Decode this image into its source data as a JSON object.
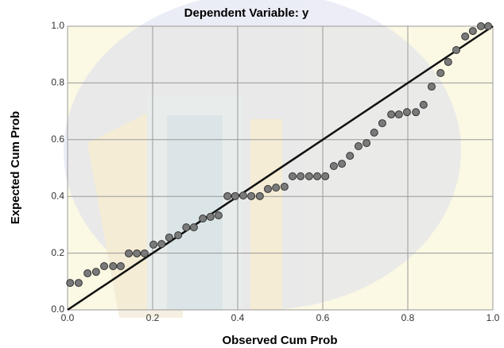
{
  "chart_data": {
    "type": "scatter",
    "title": "Dependent Variable: y",
    "x_label": "Observed Cum Prob",
    "y_label": "Expected Cum Prob",
    "xlim": [
      0,
      1
    ],
    "ylim": [
      0,
      1
    ],
    "xticks": [
      {
        "value": 0,
        "label": "0.0"
      },
      0.2,
      0.4,
      0.6,
      0.8,
      {
        "value": 1,
        "label": "1.0"
      }
    ],
    "yticks": [
      {
        "value": 0,
        "label": "0.0"
      },
      0.2,
      0.4,
      0.6,
      0.8,
      {
        "value": 1,
        "label": "1.0"
      }
    ],
    "grid": true,
    "reference_line": true,
    "color": "#7a7a7a",
    "x": [
      0.006,
      0.026,
      0.047,
      0.067,
      0.086,
      0.107,
      0.125,
      0.144,
      0.163,
      0.181,
      0.202,
      0.221,
      0.239,
      0.26,
      0.279,
      0.297,
      0.318,
      0.336,
      0.355,
      0.376,
      0.394,
      0.413,
      0.432,
      0.452,
      0.471,
      0.49,
      0.51,
      0.529,
      0.548,
      0.568,
      0.587,
      0.606,
      0.626,
      0.645,
      0.664,
      0.684,
      0.703,
      0.721,
      0.74,
      0.761,
      0.779,
      0.798,
      0.819,
      0.837,
      0.856,
      0.877,
      0.895,
      0.914,
      0.935,
      0.953,
      0.972,
      0.989
    ],
    "values": [
      0.095,
      0.095,
      0.129,
      0.134,
      0.154,
      0.154,
      0.154,
      0.199,
      0.199,
      0.199,
      0.23,
      0.232,
      0.255,
      0.263,
      0.291,
      0.291,
      0.322,
      0.328,
      0.333,
      0.401,
      0.401,
      0.403,
      0.401,
      0.401,
      0.426,
      0.431,
      0.434,
      0.471,
      0.471,
      0.471,
      0.471,
      0.471,
      0.507,
      0.515,
      0.543,
      0.577,
      0.588,
      0.625,
      0.658,
      0.689,
      0.689,
      0.697,
      0.697,
      0.723,
      0.787,
      0.835,
      0.874,
      0.916,
      0.964,
      0.983,
      1.0,
      1.0
    ]
  }
}
